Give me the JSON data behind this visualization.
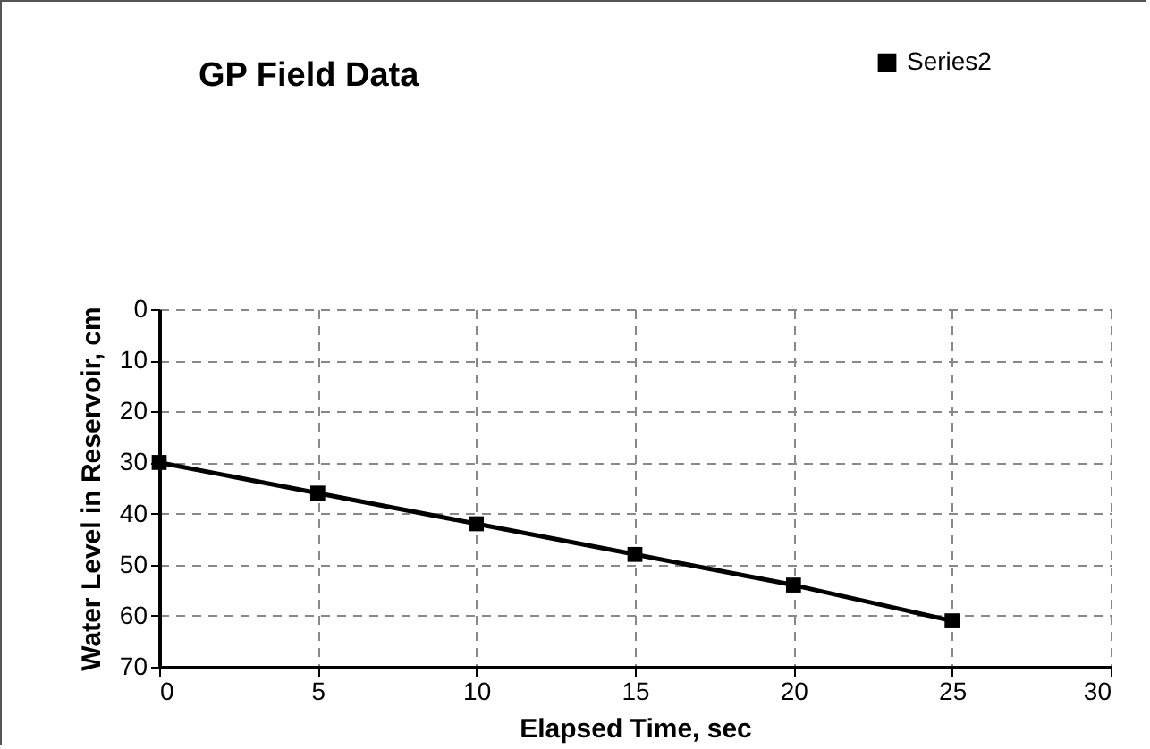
{
  "chart_data": {
    "type": "line",
    "title": "GP Field Data",
    "xlabel": "Elapsed Time, sec",
    "ylabel": "Water Level in Reservoir, cm",
    "x": [
      0,
      5,
      10,
      15,
      20,
      25
    ],
    "series": [
      {
        "name": "Series2",
        "color": "#000000",
        "values": [
          30,
          36,
          42,
          48,
          54,
          61
        ]
      }
    ],
    "xlim": [
      0,
      30
    ],
    "xticks": [
      0,
      5,
      10,
      15,
      20,
      25,
      30
    ],
    "ylim": [
      70,
      0
    ],
    "yticks": [
      0,
      10,
      20,
      30,
      40,
      50,
      60,
      70
    ],
    "grid": true,
    "legend": "top right",
    "marker": "square",
    "line_style": "solid"
  }
}
